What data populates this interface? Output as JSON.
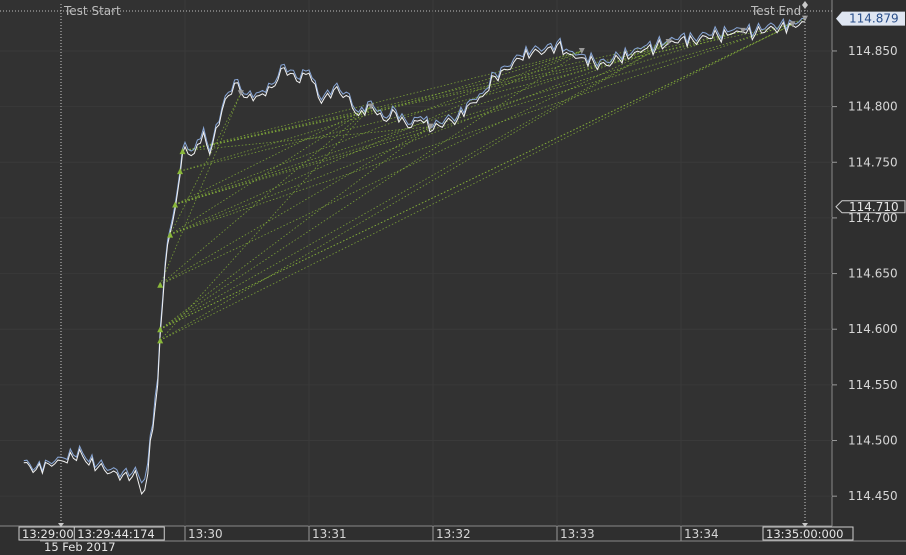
{
  "chart_data": {
    "type": "line",
    "title": "",
    "markers": {
      "start_label": "Test Start",
      "end_label": "Test End"
    },
    "y_axis": {
      "range": [
        114.425,
        114.885
      ],
      "ticks": [
        "114.850",
        "114.800",
        "114.750",
        "114.700",
        "114.650",
        "114.600",
        "114.550",
        "114.500",
        "114.450"
      ],
      "tick_values": [
        114.85,
        114.8,
        114.75,
        114.7,
        114.65,
        114.6,
        114.55,
        114.5,
        114.45
      ]
    },
    "x_axis": {
      "range_minutes": [
        -0.3,
        6.1
      ],
      "ticks": [
        "13:30",
        "13:31",
        "13:32",
        "13:33",
        "13:34"
      ],
      "tick_values": [
        1,
        2,
        3,
        4,
        5
      ],
      "box_labels": [
        "13:29:00:000",
        "13:29:44:174",
        "13:35:00:000"
      ],
      "box_values": [
        0,
        0.736,
        6
      ],
      "date_label": "15 Feb 2017"
    },
    "price_labels": [
      {
        "text": "114.879",
        "value": 114.879,
        "style": "current"
      },
      {
        "text": "114.710",
        "value": 114.71,
        "style": "outline"
      }
    ],
    "series": [
      {
        "name": "price",
        "color": "#8aa8d8",
        "x": [
          -0.3,
          -0.2,
          -0.1,
          0.0,
          0.1,
          0.15,
          0.2,
          0.3,
          0.4,
          0.5,
          0.55,
          0.6,
          0.65,
          0.7,
          0.72,
          0.74,
          0.76,
          0.78,
          0.8,
          0.82,
          0.84,
          0.86,
          0.88,
          0.9,
          0.92,
          0.94,
          0.96,
          0.98,
          1.0,
          1.05,
          1.1,
          1.15,
          1.2,
          1.3,
          1.4,
          1.5,
          1.6,
          1.7,
          1.8,
          1.9,
          2.0,
          2.1,
          2.2,
          2.3,
          2.4,
          2.5,
          2.6,
          2.7,
          2.8,
          2.9,
          3.0,
          3.1,
          3.2,
          3.3,
          3.4,
          3.5,
          3.6,
          3.7,
          3.8,
          3.9,
          4.0,
          4.1,
          4.2,
          4.3,
          4.4,
          4.5,
          4.6,
          4.7,
          4.8,
          4.9,
          5.0,
          5.1,
          5.2,
          5.3,
          5.4,
          5.5,
          5.6,
          5.7,
          5.8,
          5.9,
          6.0
        ],
        "values": [
          114.482,
          114.476,
          114.481,
          114.485,
          114.487,
          114.495,
          114.484,
          114.479,
          114.474,
          114.472,
          114.468,
          114.476,
          114.462,
          114.48,
          114.505,
          114.515,
          114.54,
          114.556,
          114.6,
          114.628,
          114.66,
          114.68,
          114.69,
          114.7,
          114.712,
          114.727,
          114.742,
          114.762,
          114.768,
          114.76,
          114.77,
          114.781,
          114.76,
          114.8,
          114.824,
          114.811,
          114.813,
          114.82,
          114.838,
          114.826,
          114.833,
          114.806,
          114.818,
          114.813,
          114.795,
          114.805,
          114.791,
          114.797,
          114.784,
          114.791,
          114.782,
          114.789,
          114.792,
          114.806,
          114.812,
          114.83,
          114.836,
          114.846,
          114.851,
          114.852,
          114.858,
          114.85,
          114.847,
          114.842,
          114.84,
          114.846,
          114.848,
          114.854,
          114.856,
          114.86,
          114.864,
          114.862,
          114.866,
          114.866,
          114.868,
          114.87,
          114.868,
          114.873,
          114.874,
          114.876,
          114.879
        ]
      },
      {
        "name": "price-2",
        "color": "#f2f2f2",
        "x": [
          -0.3,
          -0.2,
          -0.1,
          0.0,
          0.1,
          0.15,
          0.2,
          0.3,
          0.4,
          0.5,
          0.55,
          0.6,
          0.65,
          0.7,
          0.72,
          0.74,
          0.76,
          0.78,
          0.8,
          0.82,
          0.84,
          0.86,
          0.88,
          0.9,
          0.92,
          0.94,
          0.96,
          0.98,
          1.0,
          1.05,
          1.1,
          1.15,
          1.2,
          1.3,
          1.4,
          1.5,
          1.6,
          1.7,
          1.8,
          1.9,
          2.0,
          2.1,
          2.2,
          2.3,
          2.4,
          2.5,
          2.6,
          2.7,
          2.8,
          2.9,
          3.0,
          3.1,
          3.2,
          3.3,
          3.4,
          3.5,
          3.6,
          3.7,
          3.8,
          3.9,
          4.0,
          4.1,
          4.2,
          4.3,
          4.4,
          4.5,
          4.6,
          4.7,
          4.8,
          4.9,
          5.0,
          5.1,
          5.2,
          5.3,
          5.4,
          5.5,
          5.6,
          5.7,
          5.8,
          5.9,
          6.0
        ],
        "values": [
          114.48,
          114.474,
          114.479,
          114.482,
          114.484,
          114.492,
          114.481,
          114.476,
          114.471,
          114.469,
          114.464,
          114.473,
          114.452,
          114.47,
          114.5,
          114.51,
          114.53,
          114.55,
          114.595,
          114.624,
          114.656,
          114.676,
          114.686,
          114.696,
          114.708,
          114.723,
          114.738,
          114.758,
          114.764,
          114.756,
          114.766,
          114.777,
          114.757,
          114.797,
          114.821,
          114.808,
          114.81,
          114.817,
          114.835,
          114.823,
          114.83,
          114.803,
          114.815,
          114.81,
          114.792,
          114.802,
          114.788,
          114.794,
          114.781,
          114.788,
          114.779,
          114.786,
          114.789,
          114.803,
          114.809,
          114.827,
          114.833,
          114.843,
          114.848,
          114.849,
          114.855,
          114.847,
          114.844,
          114.839,
          114.837,
          114.843,
          114.845,
          114.851,
          114.853,
          114.857,
          114.861,
          114.859,
          114.863,
          114.863,
          114.865,
          114.867,
          114.865,
          114.87,
          114.871,
          114.873,
          114.876
        ]
      }
    ],
    "trades": {
      "color": "#8ab83a",
      "entries": [
        {
          "x": 0.8,
          "y": 114.64
        },
        {
          "x": 0.8,
          "y": 114.6
        },
        {
          "x": 0.8,
          "y": 114.59
        },
        {
          "x": 0.88,
          "y": 114.685
        },
        {
          "x": 0.92,
          "y": 114.712
        },
        {
          "x": 0.96,
          "y": 114.742
        },
        {
          "x": 0.98,
          "y": 114.76
        }
      ],
      "exits": [
        {
          "x": 1.45,
          "y": 114.812
        },
        {
          "x": 2.5,
          "y": 114.8
        },
        {
          "x": 2.98,
          "y": 114.782
        },
        {
          "x": 4.2,
          "y": 114.85
        },
        {
          "x": 4.9,
          "y": 114.858
        },
        {
          "x": 5.5,
          "y": 114.868
        },
        {
          "x": 5.9,
          "y": 114.874
        },
        {
          "x": 6.0,
          "y": 114.879
        }
      ]
    }
  }
}
